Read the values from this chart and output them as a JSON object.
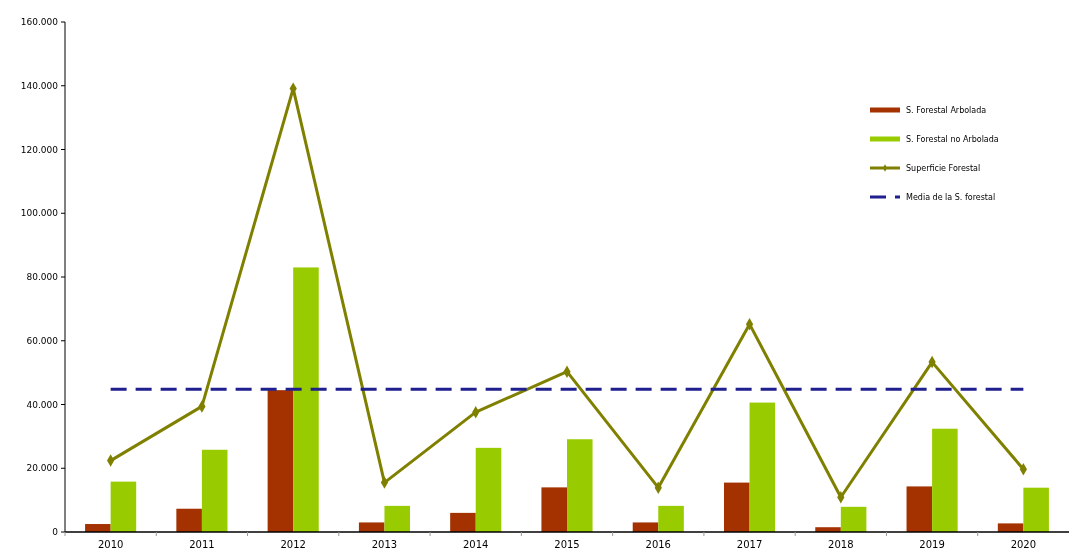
{
  "chart_data": {
    "type": "bar",
    "categories": [
      "2010",
      "2011",
      "2012",
      "2013",
      "2014",
      "2015",
      "2016",
      "2017",
      "2018",
      "2019",
      "2020"
    ],
    "series": [
      {
        "name": "S. Forestal Arbolada",
        "color": "#a33200",
        "values": [
          2500,
          7300,
          44500,
          3000,
          6000,
          14000,
          3000,
          15500,
          1500,
          14300,
          2700
        ]
      },
      {
        "name": "S. Forestal no Arbolada",
        "color": "#99cc00",
        "values": [
          15800,
          25800,
          83000,
          8200,
          26400,
          29100,
          8200,
          40600,
          7900,
          32400,
          13900
        ]
      },
      {
        "name": "Superficie Forestal",
        "type": "line",
        "color": "#808000",
        "marker": "diamond",
        "line_style": "solid",
        "values": [
          22400,
          39400,
          139100,
          15500,
          37600,
          50300,
          13900,
          65200,
          10900,
          53300,
          19700
        ]
      },
      {
        "name": "Media de la S. forestal",
        "type": "line",
        "color": "#1f1f8f",
        "marker": "none",
        "line_style": "dashed",
        "values": [
          44800,
          44800,
          44800,
          44800,
          44800,
          44800,
          44800,
          44800,
          44800,
          44800,
          44800
        ]
      }
    ],
    "ylim": [
      0,
      160000
    ],
    "yticks": [
      {
        "value": 0,
        "label": "0"
      },
      {
        "value": 20000,
        "label": "20.000"
      },
      {
        "value": 40000,
        "label": "40.000"
      },
      {
        "value": 60000,
        "label": "60.000"
      },
      {
        "value": 80000,
        "label": "80.000"
      },
      {
        "value": 100000,
        "label": "100.000"
      },
      {
        "value": 120000,
        "label": "120.000"
      },
      {
        "value": 140000,
        "label": "140.000"
      },
      {
        "value": 160000,
        "label": "160.000"
      }
    ],
    "grid": false,
    "legend": "top right"
  }
}
